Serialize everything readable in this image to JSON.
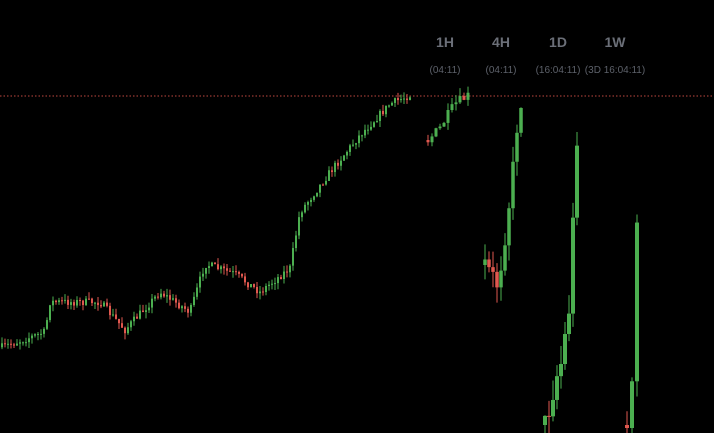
{
  "timeframes": [
    {
      "label": "1H",
      "countdown": "(04:11)"
    },
    {
      "label": "4H",
      "countdown": "(04:11)"
    },
    {
      "label": "1D",
      "countdown": "(16:04:11)"
    },
    {
      "label": "1W",
      "countdown": "(3D 16:04:11)"
    }
  ]
}
